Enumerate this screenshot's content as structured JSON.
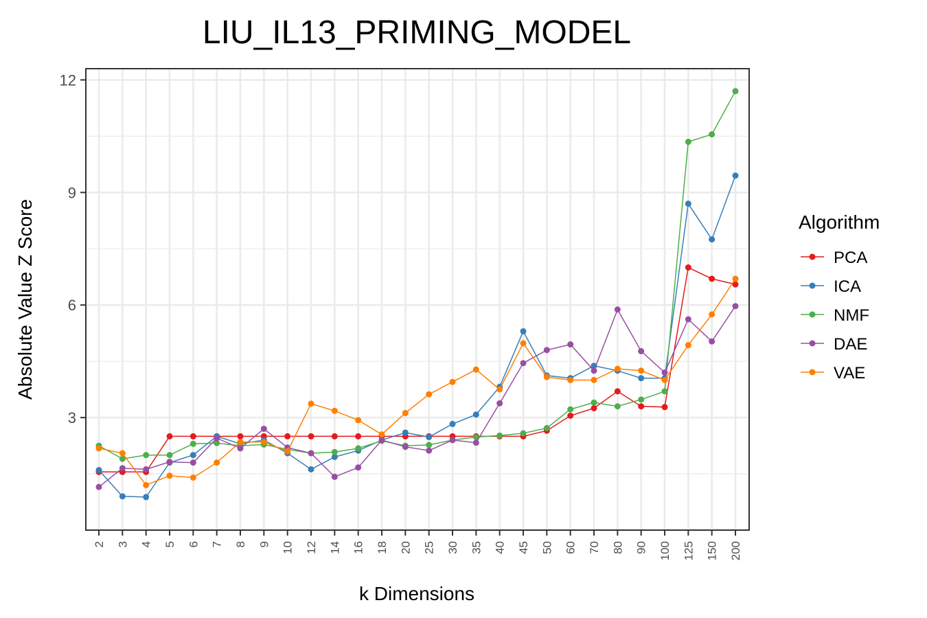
{
  "chart_data": {
    "type": "line",
    "title": "LIU_IL13_PRIMING_MODEL",
    "xlabel": "k Dimensions",
    "ylabel": "Absolute Value Z Score",
    "categories": [
      "2",
      "3",
      "4",
      "5",
      "6",
      "7",
      "8",
      "9",
      "10",
      "12",
      "14",
      "16",
      "18",
      "20",
      "25",
      "30",
      "35",
      "40",
      "45",
      "50",
      "60",
      "70",
      "80",
      "90",
      "100",
      "125",
      "150",
      "200"
    ],
    "ylim": [
      0.0,
      12.3
    ],
    "yticks": [
      3,
      6,
      9,
      12
    ],
    "ytick_labels": [
      "3",
      "6",
      "9",
      "12"
    ],
    "grid": true,
    "legend": {
      "title": "Algorithm",
      "position": "right"
    },
    "series": [
      {
        "name": "PCA",
        "color": "#E41A1C",
        "values": [
          1.55,
          1.55,
          1.55,
          2.5,
          2.5,
          2.5,
          2.5,
          2.5,
          2.5,
          2.5,
          2.5,
          2.5,
          2.5,
          2.5,
          2.5,
          2.5,
          2.5,
          2.5,
          2.5,
          2.65,
          3.05,
          3.25,
          3.7,
          3.3,
          3.28,
          7.0,
          6.7,
          6.55
        ]
      },
      {
        "name": "ICA",
        "color": "#377EB8",
        "values": [
          1.6,
          0.9,
          0.88,
          1.8,
          2.0,
          2.5,
          2.3,
          2.4,
          2.05,
          1.62,
          1.95,
          2.12,
          2.4,
          2.6,
          2.48,
          2.83,
          3.08,
          3.82,
          5.3,
          4.12,
          4.05,
          4.38,
          4.25,
          4.05,
          4.05,
          8.7,
          7.75,
          9.45
        ]
      },
      {
        "name": "NMF",
        "color": "#4DAF4A",
        "values": [
          2.25,
          1.9,
          2.0,
          2.0,
          2.3,
          2.32,
          2.25,
          2.28,
          2.15,
          2.05,
          2.08,
          2.18,
          2.38,
          2.25,
          2.27,
          2.4,
          2.48,
          2.52,
          2.58,
          2.72,
          3.22,
          3.4,
          3.3,
          3.48,
          3.7,
          10.35,
          10.55,
          11.7
        ]
      },
      {
        "name": "DAE",
        "color": "#984EA3",
        "values": [
          1.15,
          1.65,
          1.62,
          1.82,
          1.8,
          2.45,
          2.18,
          2.7,
          2.2,
          2.05,
          1.42,
          1.67,
          2.4,
          2.22,
          2.12,
          2.4,
          2.33,
          3.38,
          4.45,
          4.8,
          4.95,
          4.25,
          5.88,
          4.77,
          4.2,
          5.62,
          5.03,
          5.97
        ]
      },
      {
        "name": "VAE",
        "color": "#FF7F00",
        "values": [
          2.18,
          2.05,
          1.2,
          1.45,
          1.4,
          1.8,
          2.35,
          2.35,
          2.1,
          3.37,
          3.18,
          2.93,
          2.55,
          3.12,
          3.62,
          3.95,
          4.28,
          3.75,
          4.98,
          4.08,
          4.0,
          4.0,
          4.3,
          4.25,
          4.0,
          4.93,
          5.75,
          6.7
        ]
      }
    ]
  }
}
